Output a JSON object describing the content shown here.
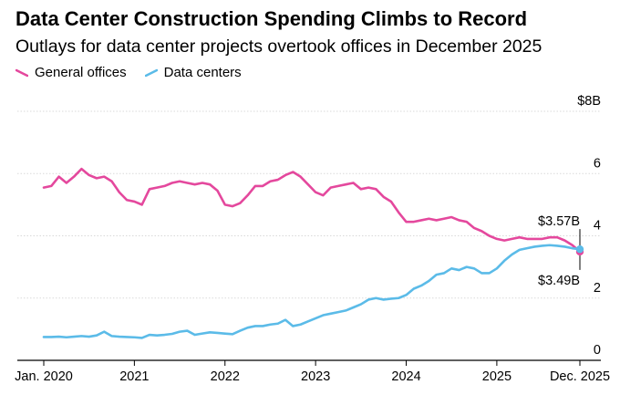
{
  "chart_data": {
    "type": "line",
    "title": "Data Center Construction Spending Climbs to Record",
    "subtitle": "Outlays for data center projects overtook offices in December 2025",
    "unit_prefix": "$",
    "unit_suffix": "B",
    "ylim": [
      0,
      8
    ],
    "y_ticks": [
      0,
      2,
      4,
      6,
      8
    ],
    "y_tick_labels": [
      "0",
      "2",
      "4",
      "6",
      "$8B"
    ],
    "x_ticks": [
      {
        "label": "Jan. 2020",
        "index": 0
      },
      {
        "label": "2021",
        "index": 12
      },
      {
        "label": "2022",
        "index": 24
      },
      {
        "label": "2023",
        "index": 36
      },
      {
        "label": "2024",
        "index": 48
      },
      {
        "label": "2025",
        "index": 60
      },
      {
        "label": "Dec. 2025",
        "index": 71
      }
    ],
    "start": "Jan. 2020",
    "end": "Dec. 2025",
    "series": [
      {
        "name": "General offices",
        "color": "#e4489d",
        "values": [
          5.55,
          5.6,
          5.9,
          5.7,
          5.9,
          6.15,
          5.95,
          5.85,
          5.9,
          5.75,
          5.4,
          5.15,
          5.1,
          5.0,
          5.5,
          5.55,
          5.6,
          5.7,
          5.75,
          5.7,
          5.65,
          5.7,
          5.65,
          5.45,
          5.0,
          4.95,
          5.05,
          5.3,
          5.6,
          5.6,
          5.75,
          5.8,
          5.95,
          6.05,
          5.9,
          5.65,
          5.4,
          5.3,
          5.55,
          5.6,
          5.65,
          5.7,
          5.5,
          5.55,
          5.5,
          5.25,
          5.1,
          4.75,
          4.45,
          4.45,
          4.5,
          4.55,
          4.5,
          4.55,
          4.6,
          4.5,
          4.45,
          4.25,
          4.15,
          4.0,
          3.9,
          3.85,
          3.9,
          3.95,
          3.9,
          3.9,
          3.9,
          3.95,
          3.95,
          3.85,
          3.7,
          3.49
        ]
      },
      {
        "name": "Data centers",
        "color": "#5bbbe8",
        "values": [
          0.75,
          0.75,
          0.76,
          0.74,
          0.76,
          0.78,
          0.76,
          0.8,
          0.92,
          0.78,
          0.76,
          0.75,
          0.74,
          0.72,
          0.82,
          0.8,
          0.82,
          0.85,
          0.92,
          0.95,
          0.82,
          0.86,
          0.9,
          0.88,
          0.86,
          0.84,
          0.95,
          1.05,
          1.1,
          1.1,
          1.15,
          1.18,
          1.3,
          1.1,
          1.15,
          1.25,
          1.35,
          1.45,
          1.5,
          1.55,
          1.6,
          1.7,
          1.8,
          1.95,
          2.0,
          1.95,
          1.98,
          2.0,
          2.1,
          2.3,
          2.4,
          2.55,
          2.75,
          2.8,
          2.95,
          2.9,
          3.0,
          2.95,
          2.8,
          2.8,
          2.95,
          3.2,
          3.4,
          3.55,
          3.6,
          3.65,
          3.68,
          3.7,
          3.68,
          3.65,
          3.6,
          3.57
        ]
      }
    ],
    "annotations": [
      {
        "label": "$3.57B",
        "series": "Data centers",
        "value": 3.57,
        "placement": "above"
      },
      {
        "label": "$3.49B",
        "series": "General offices",
        "value": 3.49,
        "placement": "below"
      }
    ],
    "grid": true,
    "legend_position": "top-left"
  }
}
